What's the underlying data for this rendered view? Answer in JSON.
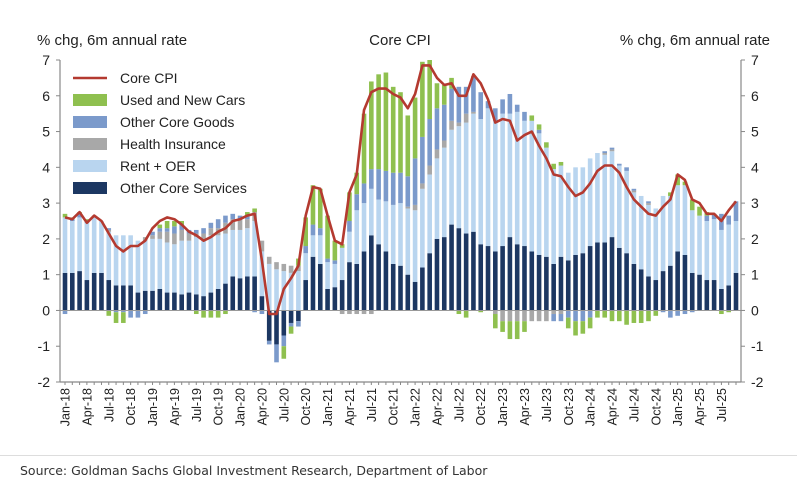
{
  "chart_data": {
    "type": "bar",
    "title": "Core CPI",
    "ylabel_left": "% chg, 6m annual rate",
    "ylabel_right": "% chg, 6m annual rate",
    "ylim": [
      -2,
      7
    ],
    "yticks": [
      -2,
      -1,
      0,
      1,
      2,
      3,
      4,
      5,
      6,
      7
    ],
    "start_month": "Jan-18",
    "x_tick_labels": [
      "Jan-18",
      "Apr-18",
      "Jul-18",
      "Oct-18",
      "Jan-19",
      "Apr-19",
      "Jul-19",
      "Oct-19",
      "Jan-20",
      "Apr-20",
      "Jul-20",
      "Oct-20",
      "Jan-21",
      "Apr-21",
      "Jul-21",
      "Oct-21",
      "Jan-22",
      "Apr-22",
      "Jul-22",
      "Oct-22",
      "Jan-23",
      "Apr-23",
      "Jul-23",
      "Oct-23",
      "Jan-24",
      "Apr-24",
      "Jul-24",
      "Oct-24",
      "Jan-25",
      "Apr-25",
      "Jul-25"
    ],
    "legend_position": "top-left",
    "series": [
      {
        "name": "Other Core Services",
        "kind": "bar",
        "color": "#1c3762",
        "values": [
          1.05,
          1.05,
          1.1,
          0.85,
          1.05,
          1.05,
          0.85,
          0.7,
          0.7,
          0.7,
          0.5,
          0.55,
          0.55,
          0.6,
          0.5,
          0.5,
          0.45,
          0.5,
          0.45,
          0.4,
          0.5,
          0.6,
          0.75,
          0.95,
          0.9,
          0.95,
          0.95,
          0.4,
          -0.85,
          -0.95,
          -0.7,
          -0.35,
          -0.3,
          0.85,
          1.5,
          1.3,
          0.6,
          0.65,
          0.85,
          1.35,
          1.3,
          1.65,
          2.1,
          1.85,
          1.65,
          1.3,
          1.25,
          1.0,
          0.8,
          1.2,
          1.6,
          2.0,
          2.05,
          2.4,
          2.3,
          2.15,
          2.2,
          1.85,
          1.8,
          1.65,
          1.8,
          2.05,
          1.85,
          1.8,
          1.65,
          1.55,
          1.5,
          1.3,
          1.5,
          1.4,
          1.55,
          1.6,
          1.8,
          1.9,
          1.9,
          2.05,
          1.75,
          1.6,
          1.3,
          1.15,
          0.95,
          0.85,
          1.1,
          1.25,
          1.65,
          1.55,
          1.05,
          1.0,
          0.85,
          0.85,
          0.6,
          0.7,
          1.05
        ]
      },
      {
        "name": "Rent + OER",
        "kind": "bar",
        "color": "#b9d5ef",
        "values": [
          1.55,
          1.45,
          1.5,
          1.6,
          1.55,
          1.45,
          1.35,
          1.4,
          1.4,
          1.4,
          1.45,
          1.4,
          1.45,
          1.4,
          1.4,
          1.35,
          1.5,
          1.45,
          1.6,
          1.6,
          1.6,
          1.5,
          1.4,
          1.3,
          1.35,
          1.35,
          1.55,
          1.25,
          1.3,
          1.15,
          1.1,
          1.05,
          1.1,
          0.75,
          0.6,
          0.8,
          0.75,
          0.65,
          0.9,
          0.85,
          1.5,
          1.35,
          1.3,
          1.25,
          1.4,
          1.65,
          1.75,
          1.85,
          2.0,
          2.2,
          2.2,
          2.25,
          2.5,
          2.65,
          2.85,
          3.1,
          3.3,
          3.5,
          3.85,
          3.65,
          3.7,
          3.45,
          3.7,
          3.5,
          3.65,
          3.4,
          3.05,
          2.65,
          2.55,
          2.45,
          2.45,
          2.4,
          2.45,
          2.5,
          2.45,
          2.4,
          2.3,
          2.3,
          2.0,
          2.05,
          2.0,
          2.0,
          2.1,
          1.95,
          1.85,
          1.95,
          1.75,
          1.65,
          1.65,
          1.7,
          1.65,
          1.7,
          1.45
        ]
      },
      {
        "name": "Health Insurance",
        "kind": "bar",
        "color": "#a8a8a8",
        "values": [
          0,
          0,
          0,
          0,
          0,
          0,
          0.05,
          0,
          0,
          0,
          0,
          0.1,
          0.1,
          0.2,
          0.3,
          0.3,
          0.3,
          0.2,
          0.1,
          0.15,
          0.2,
          0.2,
          0.3,
          0.3,
          0.3,
          0.25,
          0.25,
          0.3,
          0.2,
          0.2,
          0.2,
          0.2,
          0.15,
          0,
          0,
          0,
          0,
          0,
          -0.1,
          -0.1,
          -0.1,
          -0.1,
          -0.1,
          0,
          0,
          0,
          0,
          0.05,
          0.15,
          0.15,
          0.25,
          0.25,
          0.2,
          0.25,
          0.1,
          0.25,
          0.05,
          0,
          0,
          -0.1,
          -0.3,
          -0.3,
          -0.3,
          -0.3,
          -0.3,
          -0.3,
          -0.3,
          -0.1,
          -0.1,
          0,
          0,
          0,
          0,
          0,
          0.05,
          0.05,
          0,
          0,
          0.05,
          0,
          0.05,
          0,
          0,
          0,
          0,
          0,
          0,
          0,
          0,
          0,
          0,
          0,
          0
        ]
      },
      {
        "name": "Other Core Goods",
        "kind": "bar",
        "color": "#7b9acb",
        "values": [
          -0.1,
          0.05,
          0.1,
          0.05,
          0.05,
          0,
          0.05,
          -0.05,
          -0.05,
          -0.2,
          -0.2,
          -0.1,
          0.1,
          0.1,
          0.1,
          0.2,
          0.15,
          0.1,
          0.1,
          0.15,
          0.15,
          0.25,
          0.2,
          0.15,
          0.1,
          0.1,
          -0.05,
          -0.1,
          -0.1,
          -0.5,
          -0.3,
          -0.1,
          -0.15,
          0.2,
          0.3,
          0.2,
          0.1,
          0.1,
          0,
          0.3,
          0.45,
          0.55,
          0.55,
          0.85,
          0.85,
          0.9,
          0.85,
          0.85,
          1.3,
          1.3,
          1.3,
          1.15,
          1.0,
          0.9,
          1.0,
          0.75,
          1.0,
          0.75,
          0.2,
          0.35,
          0.4,
          0.55,
          0.2,
          0.25,
          0,
          0.1,
          0,
          -0.2,
          -0.2,
          -0.2,
          -0.3,
          -0.3,
          -0.2,
          0,
          0.05,
          0.05,
          0.05,
          0.1,
          0.05,
          0,
          0.05,
          0,
          -0.05,
          -0.2,
          -0.15,
          -0.1,
          -0.05,
          0,
          0.15,
          0.15,
          0.45,
          0.25,
          0.55
        ]
      },
      {
        "name": "Used and New Cars",
        "kind": "bar",
        "color": "#8fc04f",
        "values": [
          0.1,
          0.05,
          0.05,
          0.05,
          0,
          0,
          -0.15,
          -0.3,
          -0.3,
          0,
          0,
          0,
          0,
          0.1,
          0.2,
          0.15,
          0.1,
          0,
          -0.1,
          -0.2,
          -0.2,
          -0.2,
          -0.1,
          0,
          0,
          0.1,
          0.1,
          0,
          0,
          0,
          -0.35,
          -0.2,
          0.2,
          0.8,
          1.1,
          1.1,
          1.2,
          0.55,
          0.1,
          0.8,
          0.6,
          1.95,
          2.45,
          2.65,
          2.75,
          2.4,
          2.25,
          1.7,
          1.7,
          2.1,
          1.65,
          0.7,
          0.55,
          0.3,
          -0.1,
          -0.2,
          0,
          -0.05,
          0,
          -0.4,
          -0.3,
          -0.5,
          -0.5,
          -0.3,
          0.15,
          0.15,
          0.15,
          0.15,
          0.1,
          -0.3,
          -0.4,
          -0.35,
          -0.3,
          -0.2,
          -0.2,
          -0.3,
          -0.3,
          -0.4,
          -0.35,
          -0.35,
          -0.3,
          -0.15,
          0,
          0.1,
          0.3,
          0.1,
          0.3,
          0.25,
          0.1,
          0,
          -0.1,
          -0.05,
          0
        ]
      },
      {
        "name": "Core CPI",
        "kind": "line",
        "color": "#b43a30",
        "values": [
          2.6,
          2.55,
          2.75,
          2.45,
          2.65,
          2.5,
          2.15,
          1.8,
          1.65,
          1.8,
          1.8,
          1.95,
          2.3,
          2.5,
          2.6,
          2.55,
          2.4,
          2.2,
          2.1,
          1.95,
          2.05,
          2.2,
          2.3,
          2.5,
          2.55,
          2.65,
          2.7,
          1.4,
          -0.1,
          -0.1,
          0.6,
          0.9,
          1.25,
          2.65,
          3.45,
          3.4,
          2.65,
          1.95,
          1.85,
          3.3,
          3.8,
          5.6,
          6.1,
          6.2,
          6.2,
          6.05,
          5.95,
          5.65,
          6.05,
          6.85,
          6.85,
          6.5,
          6.3,
          6.35,
          6.0,
          6.0,
          6.6,
          6.35,
          5.9,
          5.25,
          5.35,
          5.3,
          4.75,
          4.9,
          5.0,
          4.6,
          4.25,
          3.8,
          3.75,
          3.45,
          3.2,
          3.3,
          3.55,
          3.9,
          4.05,
          4.05,
          3.85,
          3.45,
          3.1,
          2.9,
          2.7,
          2.65,
          2.9,
          3.1,
          3.8,
          3.65,
          3.1,
          3.0,
          2.7,
          2.7,
          2.5,
          2.8,
          3.05
        ]
      }
    ]
  },
  "source": "Source: Goldman Sachs Global Investment Research, Department of Labor"
}
